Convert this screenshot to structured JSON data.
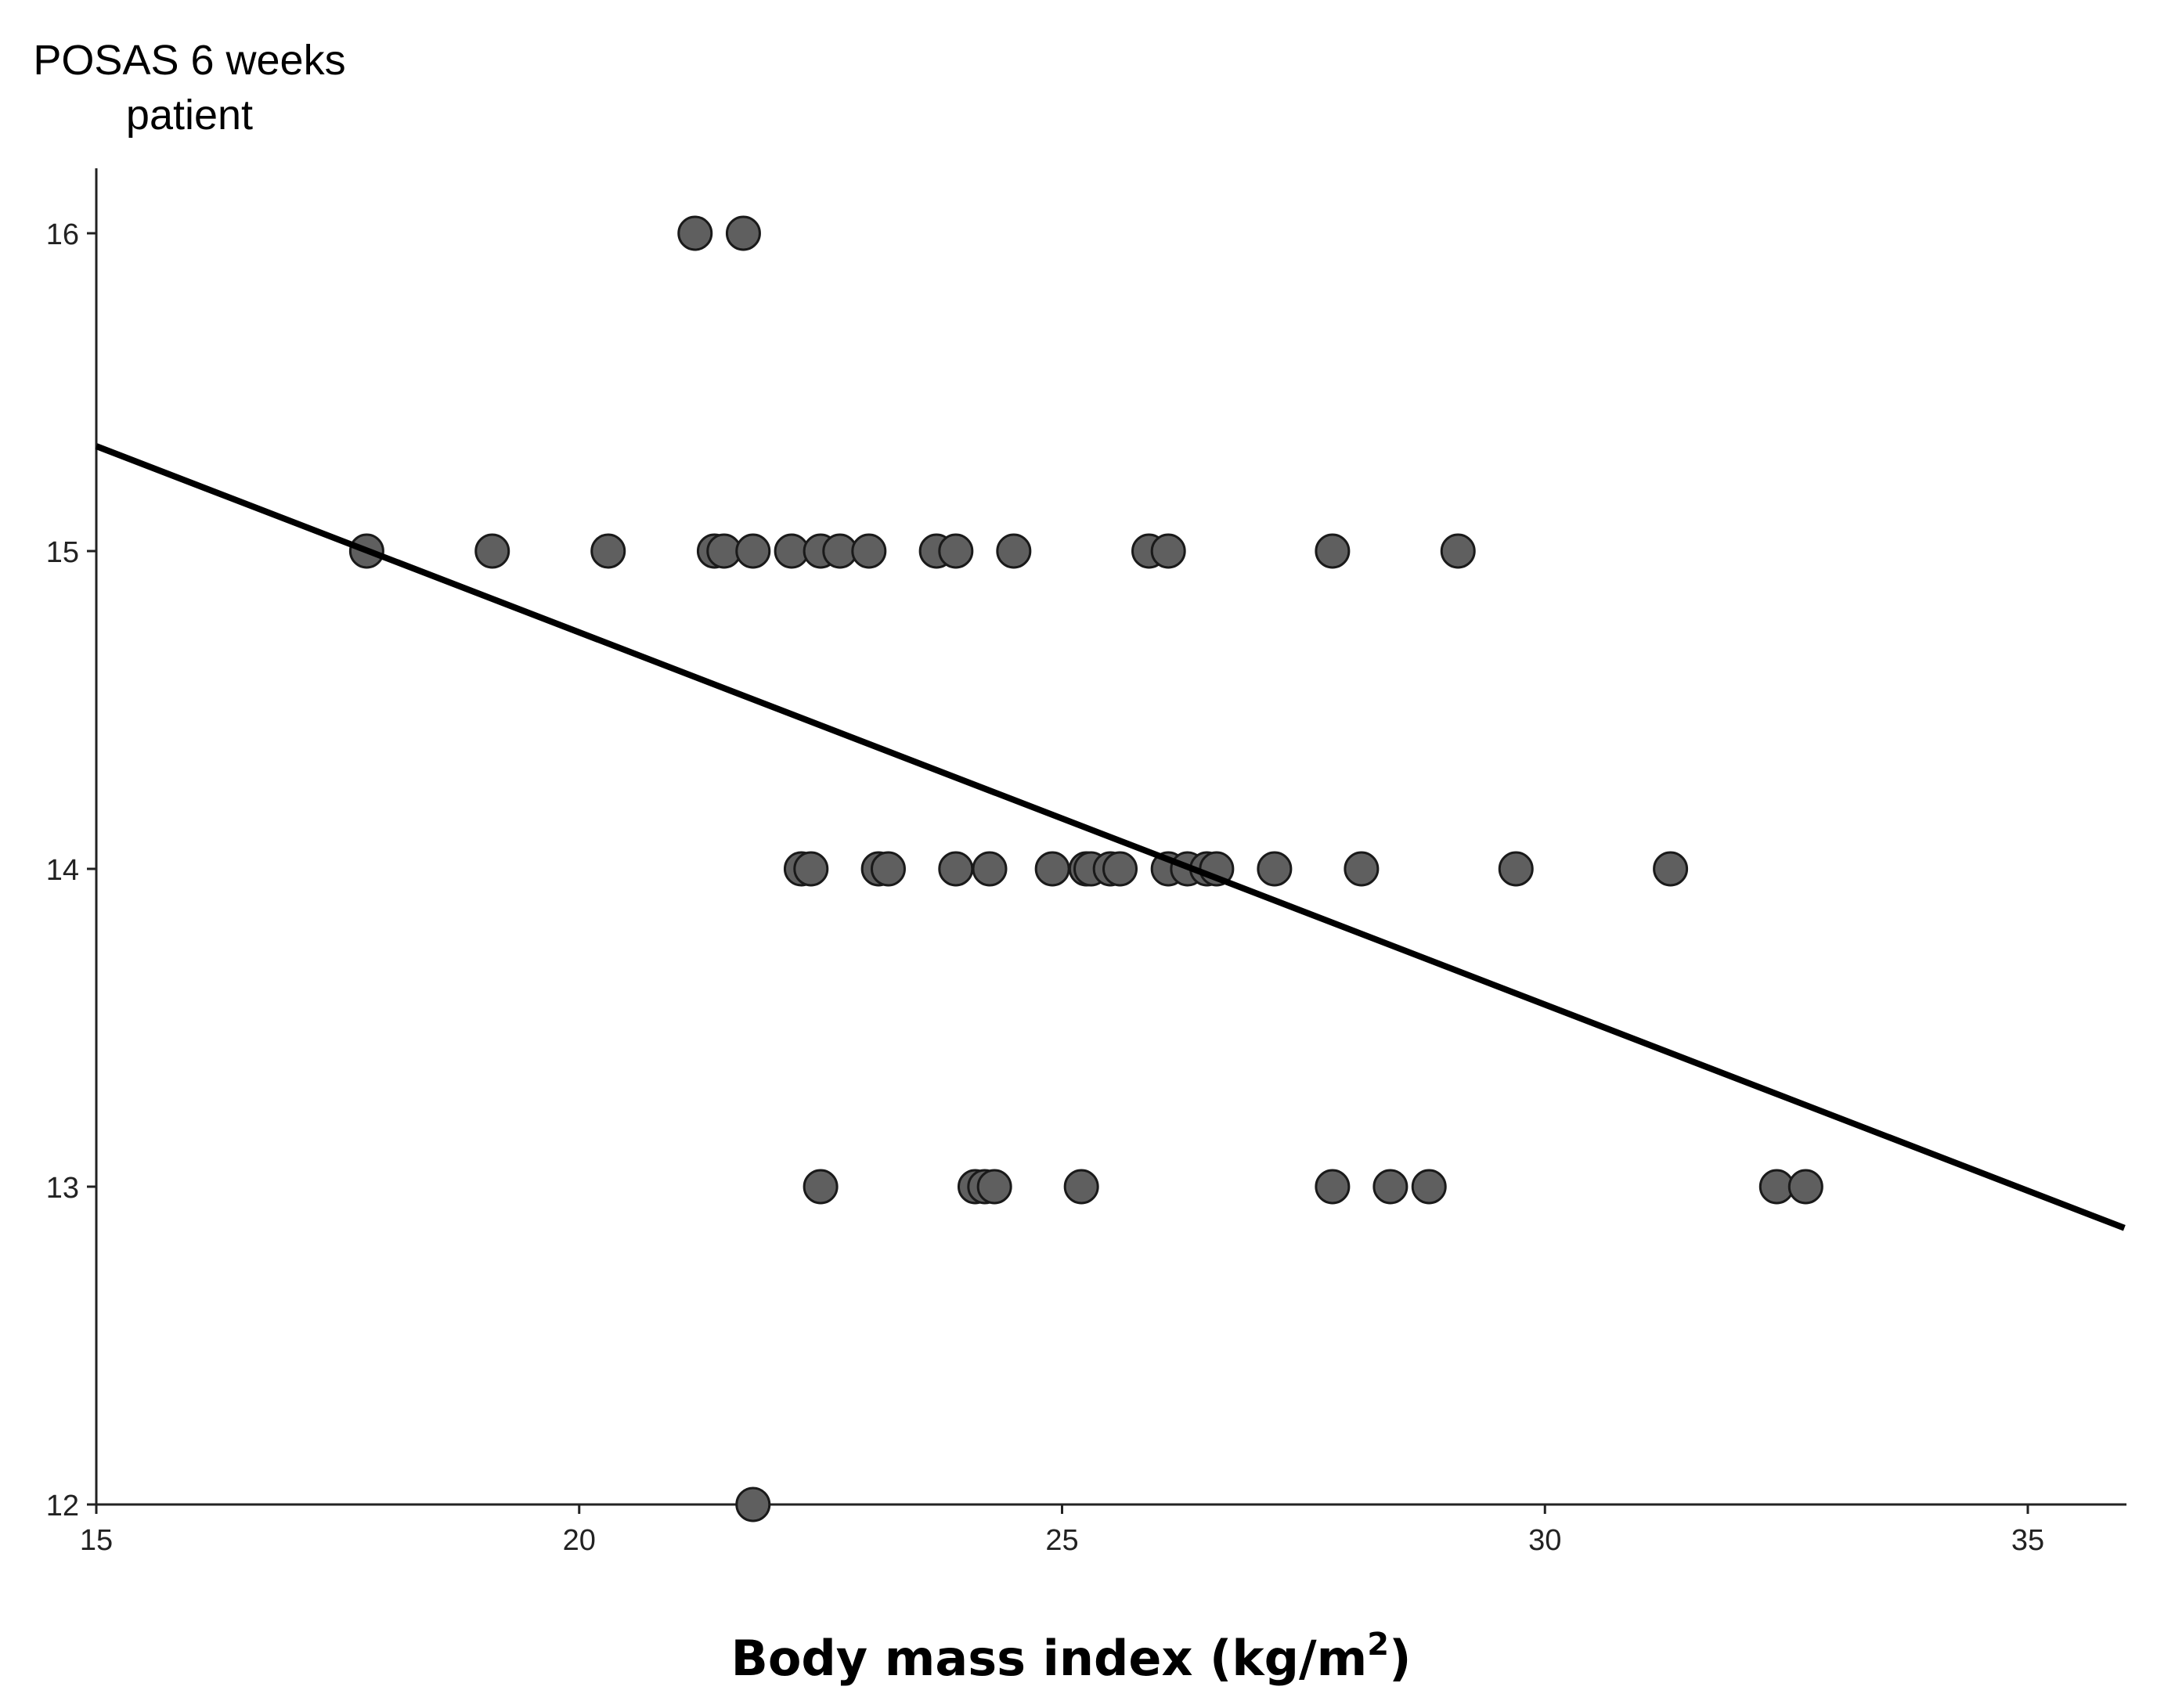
{
  "chart_data": {
    "type": "scatter",
    "ylabel_lines": [
      "POSAS 6 weeks",
      "patient"
    ],
    "xlabel": "Body mass index (kg/m",
    "xlabel_sup": "2",
    "xlabel_close": ")",
    "xlim": [
      15,
      36
    ],
    "ylim": [
      12,
      16.2
    ],
    "x_ticks": [
      15,
      20,
      25,
      30,
      35
    ],
    "x_tick_labels": [
      "15",
      "20",
      "25",
      "30",
      "35"
    ],
    "y_ticks": [
      12,
      13,
      14,
      15,
      16
    ],
    "y_tick_labels": [
      "12",
      "13",
      "14",
      "15",
      "16"
    ],
    "grid": false,
    "points": [
      {
        "x": 21.2,
        "y": 16
      },
      {
        "x": 21.7,
        "y": 16
      },
      {
        "x": 17.8,
        "y": 15
      },
      {
        "x": 19.1,
        "y": 15
      },
      {
        "x": 20.3,
        "y": 15
      },
      {
        "x": 21.4,
        "y": 15
      },
      {
        "x": 21.5,
        "y": 15
      },
      {
        "x": 21.8,
        "y": 15
      },
      {
        "x": 22.2,
        "y": 15
      },
      {
        "x": 22.5,
        "y": 15
      },
      {
        "x": 22.7,
        "y": 15
      },
      {
        "x": 23.0,
        "y": 15
      },
      {
        "x": 23.7,
        "y": 15
      },
      {
        "x": 23.9,
        "y": 15
      },
      {
        "x": 24.5,
        "y": 15
      },
      {
        "x": 25.9,
        "y": 15
      },
      {
        "x": 26.1,
        "y": 15
      },
      {
        "x": 27.8,
        "y": 15
      },
      {
        "x": 29.1,
        "y": 15
      },
      {
        "x": 22.3,
        "y": 14
      },
      {
        "x": 22.4,
        "y": 14
      },
      {
        "x": 23.1,
        "y": 14
      },
      {
        "x": 23.2,
        "y": 14
      },
      {
        "x": 23.9,
        "y": 14
      },
      {
        "x": 24.25,
        "y": 14
      },
      {
        "x": 24.9,
        "y": 14
      },
      {
        "x": 25.25,
        "y": 14
      },
      {
        "x": 25.3,
        "y": 14
      },
      {
        "x": 25.5,
        "y": 14
      },
      {
        "x": 25.6,
        "y": 14
      },
      {
        "x": 26.1,
        "y": 14
      },
      {
        "x": 26.3,
        "y": 14
      },
      {
        "x": 26.5,
        "y": 14
      },
      {
        "x": 26.6,
        "y": 14
      },
      {
        "x": 27.2,
        "y": 14
      },
      {
        "x": 28.1,
        "y": 14
      },
      {
        "x": 29.7,
        "y": 14
      },
      {
        "x": 31.3,
        "y": 14
      },
      {
        "x": 22.5,
        "y": 13
      },
      {
        "x": 24.1,
        "y": 13
      },
      {
        "x": 24.2,
        "y": 13
      },
      {
        "x": 24.3,
        "y": 13
      },
      {
        "x": 25.2,
        "y": 13
      },
      {
        "x": 27.8,
        "y": 13
      },
      {
        "x": 28.4,
        "y": 13
      },
      {
        "x": 28.8,
        "y": 13
      },
      {
        "x": 32.4,
        "y": 13
      },
      {
        "x": 32.7,
        "y": 13
      },
      {
        "x": 21.8,
        "y": 12
      }
    ],
    "fit_line": {
      "x": [
        15,
        36
      ],
      "y": [
        15.33,
        12.87
      ]
    }
  }
}
